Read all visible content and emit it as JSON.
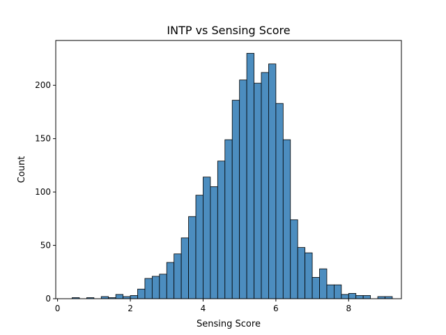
{
  "chart_data": {
    "type": "bar",
    "title": "INTP vs Sensing Score",
    "xlabel": "Sensing Score",
    "ylabel": "Count",
    "xlim": [
      -0.05,
      9.45
    ],
    "ylim": [
      0,
      242
    ],
    "xticks": [
      0,
      2,
      4,
      6,
      8
    ],
    "yticks": [
      0,
      50,
      100,
      150,
      200
    ],
    "bin_start": 0.4,
    "bin_width": 0.2,
    "values": [
      1,
      0,
      1,
      0,
      2,
      1,
      4,
      2,
      3,
      9,
      19,
      21,
      23,
      34,
      42,
      57,
      77,
      97,
      114,
      105,
      129,
      149,
      186,
      205,
      230,
      202,
      212,
      220,
      183,
      149,
      74,
      48,
      43,
      20,
      28,
      13,
      13,
      4,
      5,
      3,
      3,
      0,
      2,
      2
    ],
    "bar_color": "#4c8dbf",
    "grid": false,
    "legend": "none"
  }
}
